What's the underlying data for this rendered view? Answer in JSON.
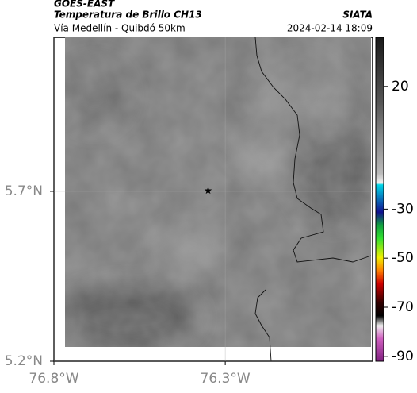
{
  "header": {
    "satellite": "GOES-EAST",
    "product": "Temperatura de Brillo CH13",
    "region": "Vía Medellín - Quibdó 50km",
    "source": "SIATA",
    "datetime": "2024-02-14 18:09"
  },
  "map": {
    "lonlim": [
      -76.8,
      -75.87
    ],
    "latlim": [
      5.2,
      6.153
    ],
    "xticks": [
      {
        "value": -76.8,
        "label": "76.8°W"
      },
      {
        "value": -76.3,
        "label": "76.3°W"
      }
    ],
    "yticks": [
      {
        "value": 5.7,
        "label": "5.7°N"
      },
      {
        "value": 5.2,
        "label": "5.2°N"
      }
    ],
    "marker": {
      "lon": -76.35,
      "lat": 5.702
    }
  },
  "colorbar": {
    "lim": [
      -92,
      40
    ],
    "ticks": [
      20,
      -30,
      -50,
      -70,
      -90
    ]
  }
}
